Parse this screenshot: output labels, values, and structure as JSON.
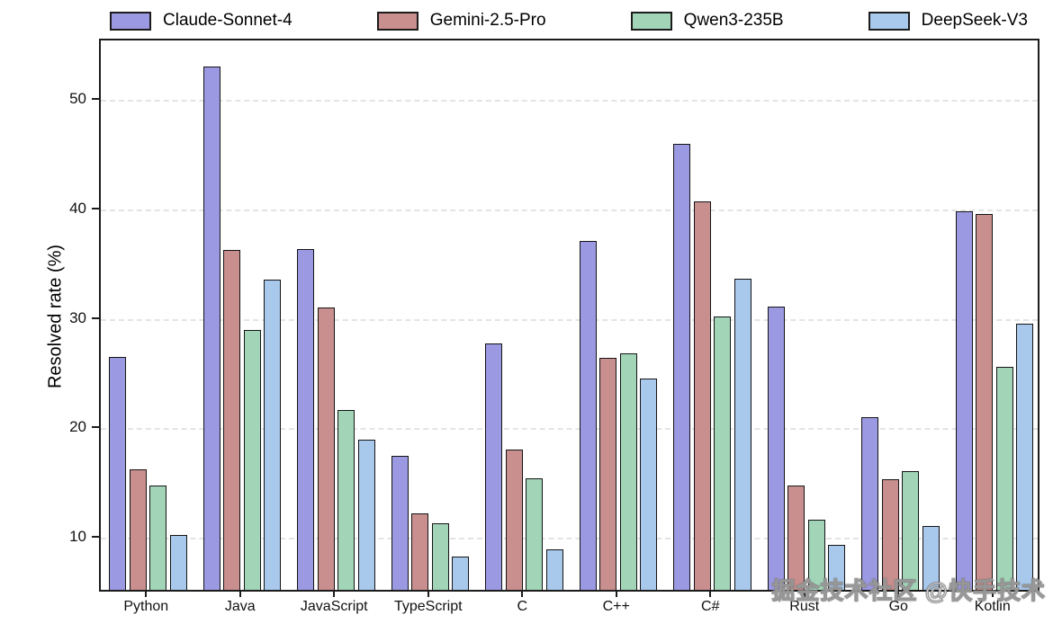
{
  "watermark": "掘金技术社区 @快手技术",
  "chart_data": {
    "type": "bar",
    "title": "",
    "xlabel": "",
    "ylabel": "Resolved rate (%)",
    "ylim": [
      5,
      55.5
    ],
    "yticks": [
      10,
      20,
      30,
      40,
      50
    ],
    "grid": "horizontal-dashed",
    "legend_position": "top-outside-horizontal",
    "categories": [
      "Python",
      "Java",
      "JavaScript",
      "TypeScript",
      "C",
      "C++",
      "C#",
      "Rust",
      "Go",
      "Kotlin"
    ],
    "series": [
      {
        "name": "Claude-Sonnet-4",
        "color": "#9c99e3",
        "values": [
          26.3,
          52.8,
          36.1,
          17.2,
          27.5,
          36.9,
          45.7,
          30.9,
          20.8,
          39.6
        ]
      },
      {
        "name": "Gemini-2.5-Pro",
        "color": "#c98e8e",
        "values": [
          16.0,
          36.0,
          30.8,
          12.0,
          17.8,
          26.2,
          40.5,
          14.5,
          15.1,
          39.3
        ]
      },
      {
        "name": "Qwen3-235B",
        "color": "#a2d5b8",
        "values": [
          14.5,
          28.7,
          21.4,
          11.1,
          15.2,
          26.6,
          30.0,
          11.4,
          15.8,
          25.4
        ]
      },
      {
        "name": "DeepSeek-V3",
        "color": "#a9c9ec",
        "values": [
          10.0,
          33.3,
          18.7,
          8.0,
          8.7,
          24.3,
          33.4,
          9.1,
          10.8,
          29.3
        ]
      }
    ],
    "colors": {
      "axis": "#1c1c1c",
      "gridline": "#cdcdcd",
      "background": "#ffffff"
    }
  }
}
